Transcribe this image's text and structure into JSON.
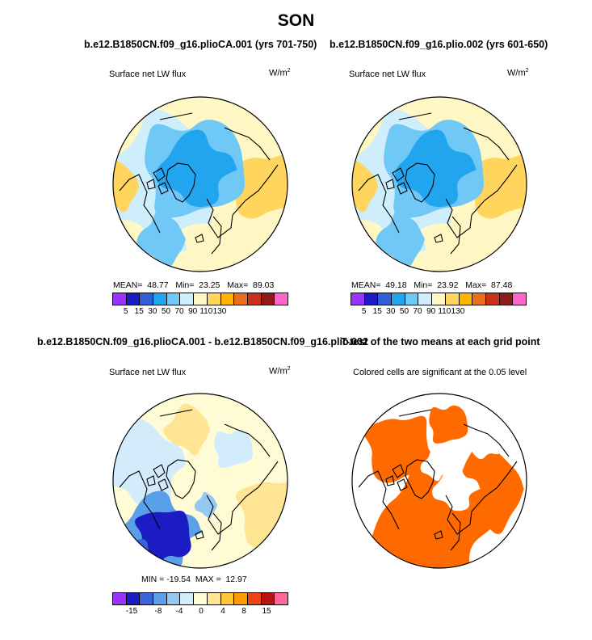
{
  "figure": {
    "season": "SON",
    "colors": {
      "seq": [
        "#9933ff",
        "#1c1cc4",
        "#2f5fd9",
        "#22a5ef",
        "#6fc8f5",
        "#cfeefb",
        "#fff7c4",
        "#ffd55e",
        "#ffb400",
        "#e8701a",
        "#c8321a",
        "#8e1a1a",
        "#ff66cc"
      ],
      "diff": [
        "#9933ff",
        "#1c1cc4",
        "#3a64d8",
        "#5aa0e8",
        "#96c9f2",
        "#d2ecfb",
        "#fffbd5",
        "#ffe493",
        "#ffc536",
        "#ff9a00",
        "#ee4414",
        "#b41414",
        "#ff6699"
      ],
      "sig": "#ff6a00"
    }
  },
  "panels": [
    {
      "title": "b.e12.B1850CN.f09_g16.plioCA.001 (yrs 701-750)",
      "subtitle": "Surface net LW flux",
      "units": "W/m",
      "units_sup": "2",
      "stats": "MEAN=  48.77   Min=  23.25   Max=  89.03",
      "ticks": [
        "5",
        "15",
        "30",
        "50",
        "70",
        "90",
        "110",
        "130"
      ]
    },
    {
      "title": "b.e12.B1850CN.f09_g16.plio.002 (yrs 601-650)",
      "subtitle": "Surface net LW flux",
      "units": "W/m",
      "units_sup": "2",
      "stats": "MEAN=  49.18   Min=  23.92   Max=  87.48",
      "ticks": [
        "5",
        "15",
        "30",
        "50",
        "70",
        "90",
        "110",
        "130"
      ]
    },
    {
      "title": "b.e12.B1850CN.f09_g16.plioCA.001 - b.e12.B1850CN.f09_g16.plio.002",
      "subtitle": "Surface net LW flux",
      "units": "W/m",
      "units_sup": "2",
      "stats": "MIN = -19.54  MAX =  12.97",
      "ticks": [
        "-15",
        "-8",
        "-4",
        "0",
        "4",
        "8",
        "15"
      ]
    },
    {
      "title": "T-test of the two means at each grid point",
      "subtitle": "Colored cells are significant at the 0.05 level"
    }
  ]
}
